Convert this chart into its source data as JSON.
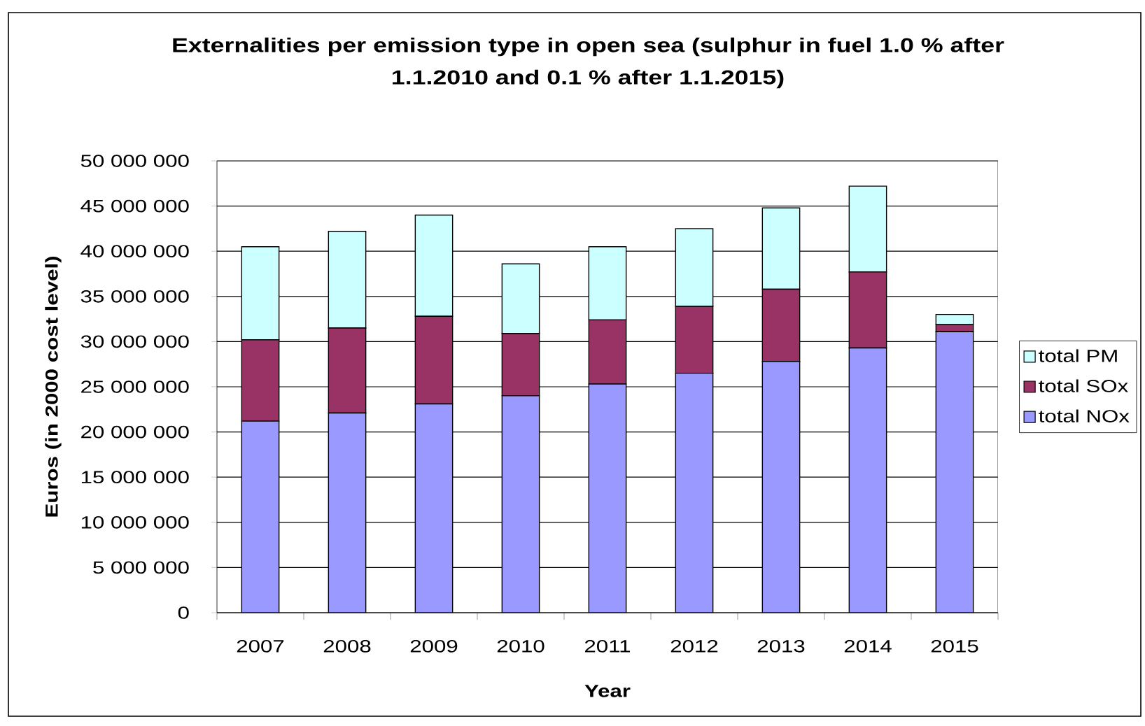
{
  "chart_data": {
    "type": "bar",
    "stacked": true,
    "title": "Externalities per emission type in open sea (sulphur in fuel 1.0 % after 1.1.2010 and 0.1 % after 1.1.2015)",
    "xlabel": "Year",
    "ylabel": "Euros (in 2000 cost level)",
    "categories": [
      "2007",
      "2008",
      "2009",
      "2010",
      "2011",
      "2012",
      "2013",
      "2014",
      "2015"
    ],
    "series": [
      {
        "name": "total NOx",
        "color": "#9999ff",
        "values": [
          21200000,
          22100000,
          23100000,
          24000000,
          25300000,
          26500000,
          27800000,
          29300000,
          31100000
        ]
      },
      {
        "name": "total SOx",
        "color": "#993366",
        "values": [
          9000000,
          9400000,
          9700000,
          6900000,
          7100000,
          7400000,
          8000000,
          8400000,
          800000
        ]
      },
      {
        "name": "total PM",
        "color": "#ccffff",
        "values": [
          10300000,
          10700000,
          11200000,
          7700000,
          8100000,
          8600000,
          9000000,
          9500000,
          1100000
        ]
      }
    ],
    "ylim": [
      0,
      50000000
    ],
    "yticks": [
      0,
      {
        "value": 5000000,
        "label": "5 000 000"
      },
      {
        "value": 10000000,
        "label": "10 000 000"
      },
      {
        "value": 15000000,
        "label": "15 000 000"
      },
      {
        "value": 20000000,
        "label": "20 000 000"
      },
      {
        "value": 25000000,
        "label": "25 000 000"
      },
      {
        "value": 30000000,
        "label": "30 000 000"
      },
      {
        "value": 35000000,
        "label": "35 000 000"
      },
      {
        "value": 40000000,
        "label": "40 000 000"
      },
      {
        "value": 45000000,
        "label": "45 000 000"
      },
      {
        "value": 50000000,
        "label": "50 000 000"
      }
    ],
    "grid": "y",
    "legend": "right"
  }
}
